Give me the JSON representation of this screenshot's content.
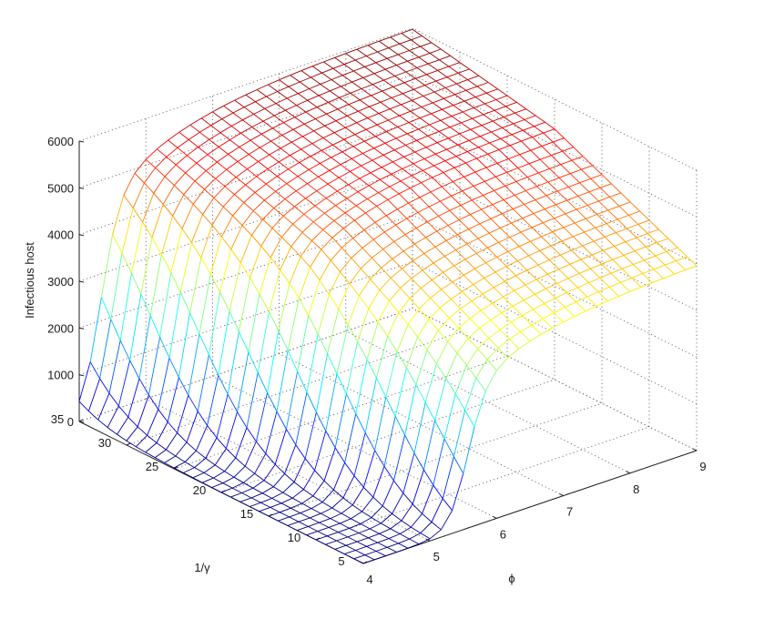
{
  "chart_data": {
    "type": "surface",
    "xlabel": "ϕ",
    "ylabel": "1/γ",
    "zlabel": "Infectious host",
    "x_ticks": [
      "4",
      "5",
      "6",
      "7",
      "8",
      "9"
    ],
    "y_ticks": [
      "5",
      "10",
      "15",
      "20",
      "25",
      "30",
      "35"
    ],
    "z_ticks": [
      "0",
      "1000",
      "2000",
      "3000",
      "4000",
      "5000",
      "6000"
    ],
    "xlim": [
      4,
      9
    ],
    "ylim": [
      5,
      35
    ],
    "zlim": [
      0,
      6000
    ],
    "grid": true,
    "colormap": "jet",
    "mesh_resolution": 30,
    "surface_samples": {
      "description_x": "phi",
      "rows": [
        {
          "one_over_gamma": 5,
          "phi": [
            4,
            5,
            6,
            7,
            8,
            9
          ],
          "infectious_host": [
            0,
            0,
            2200,
            3200,
            3700,
            4000
          ]
        },
        {
          "one_over_gamma": 20,
          "phi": [
            4,
            5,
            6,
            7,
            8,
            9
          ],
          "infectious_host": [
            0,
            3000,
            4300,
            4900,
            5200,
            5400
          ]
        },
        {
          "one_over_gamma": 35,
          "phi": [
            4,
            5,
            6,
            7,
            8,
            9
          ],
          "infectious_host": [
            0,
            4100,
            5000,
            5500,
            5800,
            6000
          ]
        }
      ]
    }
  }
}
